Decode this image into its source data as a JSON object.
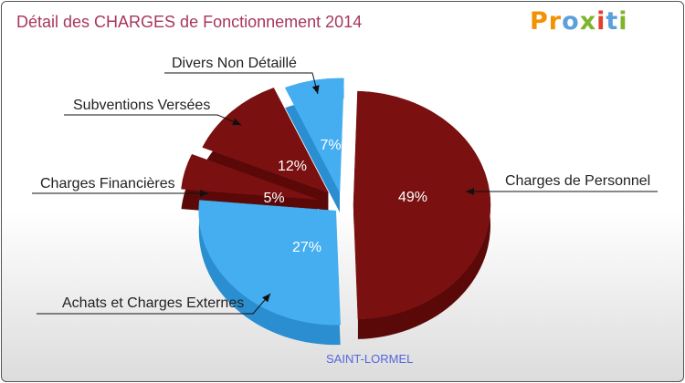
{
  "header": {
    "title": "Détail des CHARGES de Fonctionnement 2014",
    "logo_letters": [
      {
        "ch": "P",
        "color": "#f29200"
      },
      {
        "ch": "r",
        "color": "#f29200"
      },
      {
        "ch": "o",
        "color": "#5aa0dc"
      },
      {
        "ch": "x",
        "color": "#7db52b"
      },
      {
        "ch": "i",
        "color": "#e0412c"
      },
      {
        "ch": "t",
        "color": "#5aa0dc"
      },
      {
        "ch": "i",
        "color": "#7db52b"
      }
    ]
  },
  "subtitle": "SAINT-LORMEL",
  "chart_data": {
    "type": "pie",
    "title": "Détail des CHARGES de Fonctionnement 2014",
    "subtitle": "SAINT-LORMEL",
    "slices": [
      {
        "label": "Charges de Personnel",
        "value": 49,
        "pct_label": "49%",
        "color": "#7a1010",
        "side": "#5a0808"
      },
      {
        "label": "Achats et Charges Externes",
        "value": 27,
        "pct_label": "27%",
        "color": "#45aef0",
        "side": "#2a8ed0"
      },
      {
        "label": "Charges Financières",
        "value": 5,
        "pct_label": "5%",
        "color": "#7a1010",
        "side": "#5a0808"
      },
      {
        "label": "Subventions Versées",
        "value": 12,
        "pct_label": "12%",
        "color": "#7a1010",
        "side": "#5a0808"
      },
      {
        "label": "Divers Non Détaillé",
        "value": 7,
        "pct_label": "7%",
        "color": "#45aef0",
        "side": "#2a8ed0"
      }
    ]
  }
}
